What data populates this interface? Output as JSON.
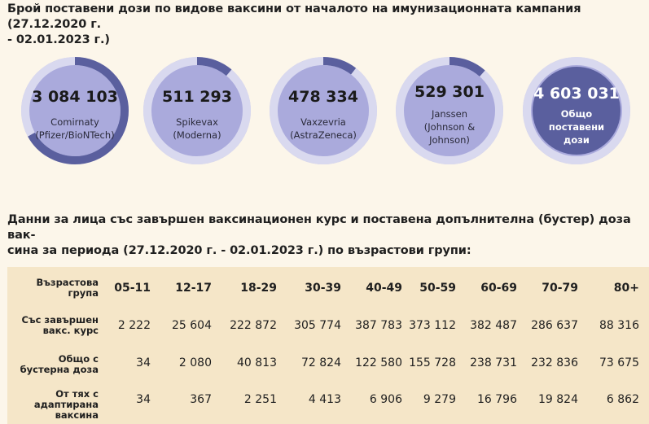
{
  "heading_doses": "Брой поставени дози по видове ваксини от началото на имунизационната кампания (27.12.2020 г. - 02.01.2023 г.)",
  "heading_doses_line1": "Брой поставени дози по видове ваксини от началото на имунизационната кампания (27.12.2020 г.",
  "heading_doses_line2": "- 02.01.2023 г.)",
  "vaccines": [
    {
      "count": "3 084 103",
      "label_lines": [
        "Comirnaty",
        "(Pfizer/BioNTech)"
      ],
      "share": 0.67
    },
    {
      "count": "511 293",
      "label_lines": [
        "Spikevax",
        "(Moderna)"
      ],
      "share": 0.111
    },
    {
      "count": "478 334",
      "label_lines": [
        "Vaxzevria",
        "(AstraZeneca)"
      ],
      "share": 0.104
    },
    {
      "count": "529 301",
      "label_lines": [
        "Janssen",
        "(Johnson &",
        "Johnson)"
      ],
      "share": 0.115
    },
    {
      "count": "4 603 031",
      "label_lines": [
        "Общо",
        "поставени",
        "дози"
      ],
      "share": 1.0
    }
  ],
  "colors": {
    "background": "#fcf6ea",
    "circle_fill": "#aaaadc",
    "ring_track": "#ffffff",
    "ring_fill": "#5a5f9e",
    "table_bg": "#f5e6c8"
  },
  "heading_age_line1": "Данни за лица със завършен ваксинационен курс и поставена допълнителна (бустер) доза вак-",
  "heading_age_line2": "сина за периода (27.12.2020 г. - 02.01.2023 г.) по възрастови групи:",
  "table": {
    "header_label_lines": [
      "Възрастова",
      "група"
    ],
    "age_groups": [
      "05-11",
      "12-17",
      "18-29",
      "30-39",
      "40-49",
      "50-59",
      "60-69",
      "70-79",
      "80+"
    ],
    "rows": [
      {
        "label_lines": [
          "Със завършен",
          "вакс. курс"
        ],
        "values": [
          "2 222",
          "25 604",
          "222 872",
          "305 774",
          "387 783",
          "373 112",
          "382 487",
          "286 637",
          "88 316"
        ]
      },
      {
        "label_lines": [
          "Общо с",
          "бустерна доза"
        ],
        "values": [
          "34",
          "2 080",
          "40 813",
          "72 824",
          "122 580",
          "155 728",
          "238 731",
          "232 836",
          "73 675"
        ]
      },
      {
        "label_lines": [
          "От тях с",
          "адаптирана",
          "ваксина"
        ],
        "values": [
          "34",
          "367",
          "2 251",
          "4 413",
          "6 906",
          "9 279",
          "16 796",
          "19 824",
          "6 862"
        ]
      }
    ]
  }
}
